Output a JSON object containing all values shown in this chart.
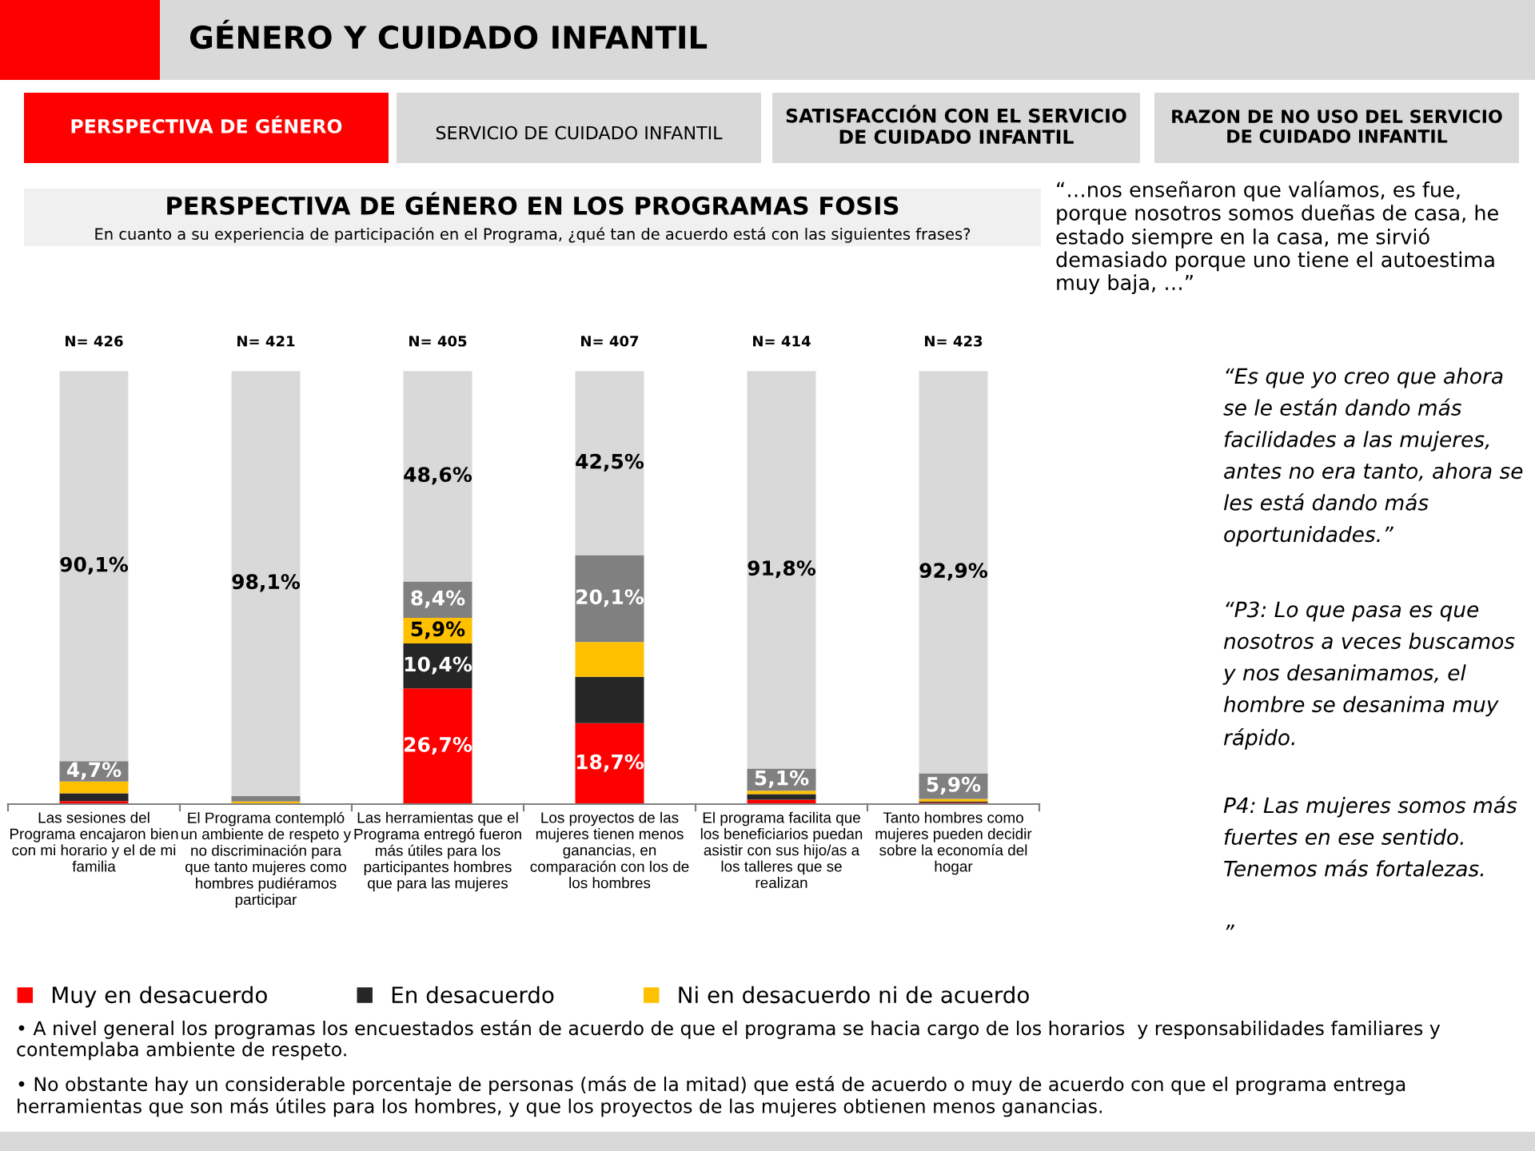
{
  "chart_data": {
    "type": "bar",
    "stacked": true,
    "title": "PERSPECTIVA DE GÉNERO EN LOS PROGRAMAS FOSIS",
    "subtitle": "En cuanto a su experiencia de participación en el Programa, ¿qué tan de acuerdo está con las siguientes frases?",
    "categories": [
      "Las sesiones del\nPrograma encajaron bien\ncon mi horario y el de mi\nfamilia",
      "El Programa contempló\nun ambiente de respeto y\nno discriminación para\nque tanto mujeres como\nhombres pudiéramos\nparticipar",
      "Las herramientas que el\nPrograma entregó fueron\nmás útiles para los\nparticipantes hombres\nque para las mujeres",
      "Los proyectos de las\nmujeres tienen menos\nganancias, en\ncomparación con los de\nlos hombres",
      "El programa facilita que\nlos beneficiarios puedan\nasistir con sus hijo/as a\nlos talleres que se\nrealizan",
      "Tanto hombres como\nmujeres pueden decidir\nsobre la economía del\nhogar"
    ],
    "series": [
      {
        "name": "Muy en desacuerdo",
        "color": "#ff0000",
        "values": [
          0.7,
          0,
          26.7,
          18.7,
          1.0,
          0.3
        ],
        "value_labels": [
          null,
          null,
          "26,7%",
          "18,7%",
          null,
          null
        ]
      },
      {
        "name": "En desacuerdo",
        "color": "#262626",
        "values": [
          1.8,
          0,
          10.4,
          10.7,
          1.3,
          0.3
        ],
        "value_labels": [
          null,
          null,
          "10,4%",
          null,
          null,
          null
        ]
      },
      {
        "name": "Ni en desacuerdo ni de acuerdo",
        "color": "#ffc000",
        "values": [
          2.7,
          0.6,
          5.9,
          8.0,
          0.8,
          0.6
        ],
        "value_labels": [
          null,
          null,
          "5,9%",
          null,
          null,
          null
        ]
      },
      {
        "color": "#808080",
        "values": [
          4.7,
          1.3,
          8.4,
          20.1,
          5.1,
          5.9
        ],
        "value_labels": [
          "4,7%",
          null,
          "8,4%",
          "20,1%",
          "5,1%",
          "5,9%"
        ]
      },
      {
        "color": "#d9d9d9",
        "values": [
          90.1,
          98.1,
          48.6,
          42.5,
          91.8,
          92.9
        ],
        "value_labels": [
          "90,1%",
          "98,1%",
          "48,6%",
          "42,5%",
          "91,8%",
          "92,9%"
        ]
      }
    ],
    "legend": "bottom",
    "grid": false,
    "annotations": [
      "GÉNERO Y CUIDADO INFANTIL",
      "PERSPECTIVA DE GÉNERO",
      "SERVICIO DE CUIDADO INFANTIL",
      "SATISFACCIÓN CON EL SERVICIO\nDE CUIDADO INFANTIL",
      "RAZON DE NO USO DEL SERVICIO\nDE CUIDADO INFANTIL",
      "“…nos enseñaron que valíamos, es fue, porque nosotros somos dueñas de casa, he estado siempre en la casa, me sirvió demasiado porque uno tiene el autoestima muy baja, …”",
      "“Es que yo creo que ahora se le están dando más facilidades a las mujeres, antes no era tanto, ahora se les está dando más oportunidades.”",
      "“P3: Lo que pasa es que nosotros a veces buscamos y nos desanimamos, el hombre se desanima muy rápido.",
      "P4: Las mujeres somos más fuertes en ese sentido. Tenemos más fortalezas.",
      "”",
      "• A nivel general los programas los encuestados están de acuerdo de que el programa se hacia cargo de los horarios  y responsabilidades familiares y contemplaba ambiente de respeto.",
      "• No obstante hay un considerable porcentaje de personas (más de la mitad) que está de acuerdo o muy de acuerdo con que el programa entrega herramientas que son más útiles para los hombres, y que los proyectos de las mujeres obtienen menos ganancias.",
      "N= 426",
      "N= 421",
      "N= 405",
      "N= 407",
      "N= 414",
      "N= 423"
    ]
  }
}
